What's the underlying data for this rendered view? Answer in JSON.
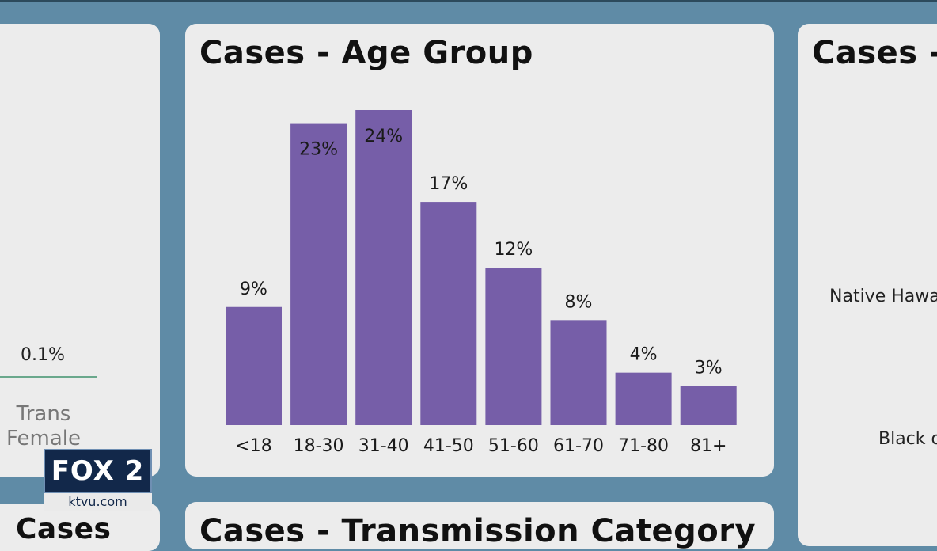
{
  "left_panel": {
    "value": "0.1%",
    "label": "Trans Female"
  },
  "right_panel": {
    "title": "Cases - R",
    "labels": [
      "Native Hawa",
      "Black o"
    ]
  },
  "bottom_panel": {
    "title": "Cases - Transmission Category",
    "left_title": "Cases"
  },
  "logo": {
    "brand": "FOX 2",
    "site": "ktvu.com"
  },
  "colors": {
    "bar": "#765ea8",
    "background": "#5f8ba6",
    "card": "#ececec"
  },
  "chart_data": {
    "type": "bar",
    "title": "Cases - Age Group",
    "categories": [
      "<18",
      "18-30",
      "31-40",
      "41-50",
      "51-60",
      "61-70",
      "71-80",
      "81+"
    ],
    "values": [
      9,
      23,
      24,
      17,
      12,
      8,
      4,
      3
    ],
    "value_labels": [
      "9%",
      "23%",
      "24%",
      "17%",
      "12%",
      "8%",
      "4%",
      "3%"
    ],
    "ylabel": "",
    "xlabel": "",
    "ylim": [
      0,
      24
    ],
    "grid": false,
    "legend": "none"
  }
}
